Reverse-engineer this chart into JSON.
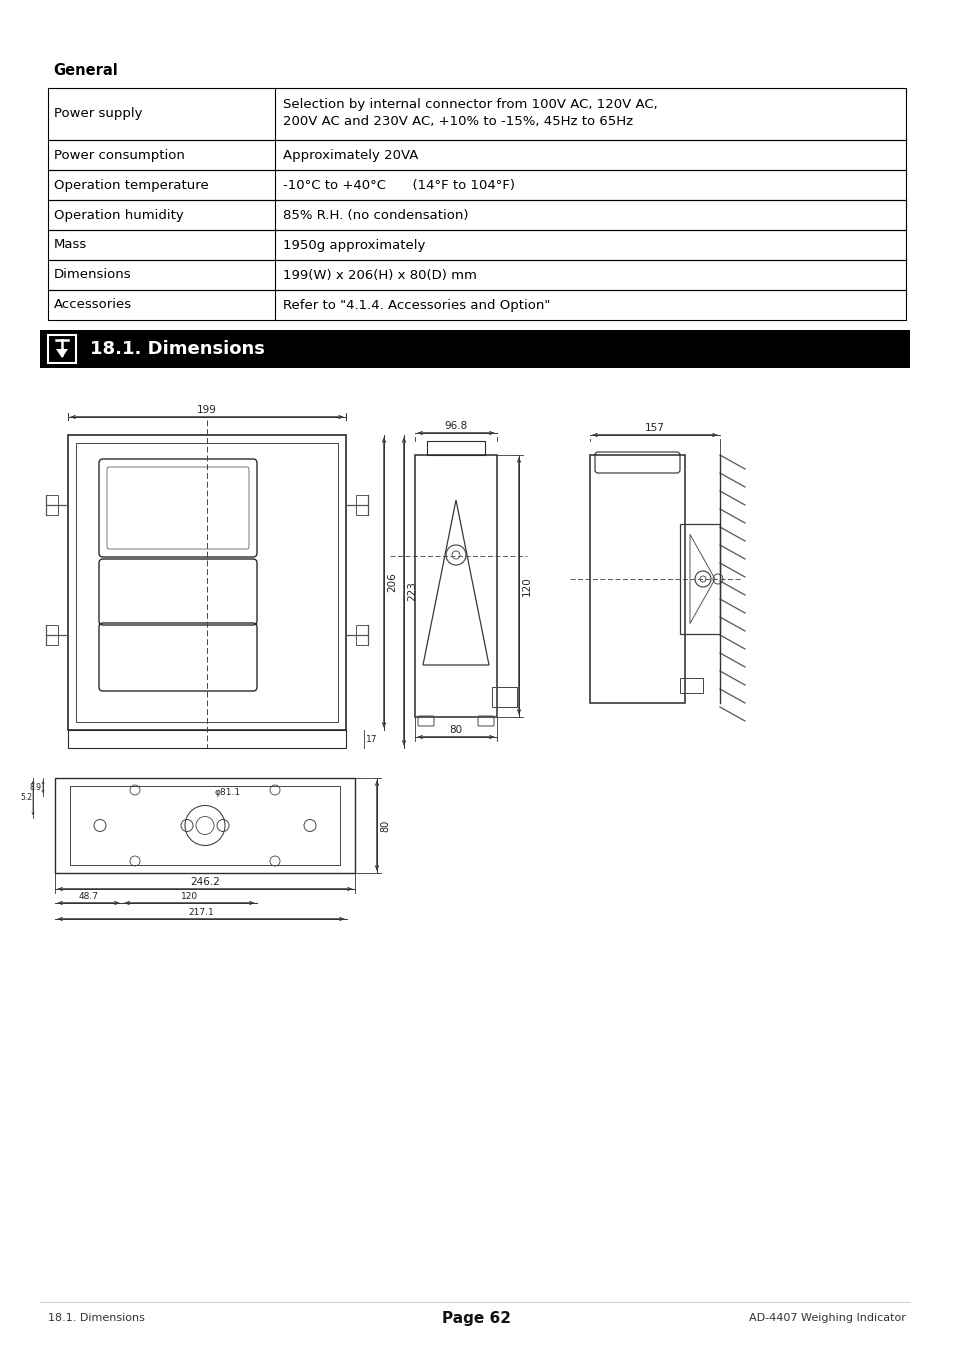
{
  "background_color": "#ffffff",
  "general_label": "General",
  "table_rows": [
    [
      "Power supply",
      "Selection by internal connector from 100V AC, 120V AC,\n200V AC and 230V AC, +10% to -15%, 45Hz to 65Hz"
    ],
    [
      "Power consumption",
      "Approximately 20VA"
    ],
    [
      "Operation temperature",
      "-10°C to +40°C  (14°F to 104°F)"
    ],
    [
      "Operation humidity",
      "85% R.H. (no condensation)"
    ],
    [
      "Mass",
      "1950g approximately"
    ],
    [
      "Dimensions",
      "199(W) x 206(H) x 80(D) mm"
    ],
    [
      "Accessories",
      "Refer to \"4.1.4. Accessories and Option\""
    ]
  ],
  "section_header_text": "18.1. Dimensions",
  "footer_left": "18.1. Dimensions",
  "footer_center": "Page 62",
  "footer_right": "AD-4407 Weighing Indicator"
}
